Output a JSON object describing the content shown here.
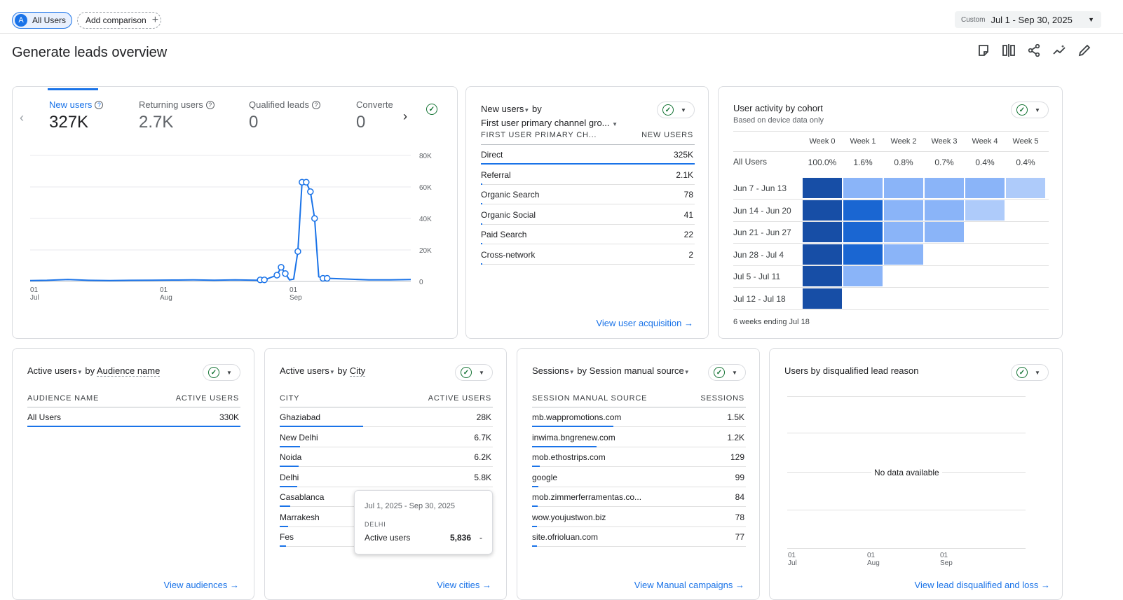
{
  "header": {
    "comparison_chip": {
      "avatar": "A",
      "label": "All Users"
    },
    "add_comparison": {
      "label": "Add comparison",
      "icon": "plus-icon"
    },
    "date_range": {
      "type_label": "Custom",
      "value": "Jul 1 - Sep 30, 2025",
      "icon": "caret-down-icon"
    },
    "page_title": "Generate leads overview",
    "tools": [
      "annotation-icon",
      "compare-columns-icon",
      "share-icon",
      "insights-icon",
      "edit-pencil-icon"
    ]
  },
  "colors": {
    "accent": "#1a73e8",
    "ok": "#137333",
    "heat_dark": "#174ea6",
    "heat_mid": "#1a66d2",
    "heat_light": "#8ab4f8",
    "heat_lighter": "#aecbfa"
  },
  "overview_card": {
    "metrics": [
      {
        "label": "New users",
        "value": "327K",
        "help": "?",
        "active": true
      },
      {
        "label": "Returning users",
        "value": "2.7K",
        "help": "?",
        "active": false
      },
      {
        "label": "Qualified leads",
        "value": "0",
        "help": "?",
        "active": false
      },
      {
        "label": "Converte",
        "value": "0",
        "active": false
      }
    ],
    "prev_icon": "chevron-left-icon",
    "next_icon": "chevron-right-icon",
    "chart_data": {
      "type": "line",
      "series": [
        {
          "x": [
            "07-01",
            "07-05",
            "07-10",
            "07-15",
            "07-20",
            "07-25",
            "07-30",
            "08-04",
            "08-09",
            "08-14",
            "08-19",
            "08-24",
            "08-25",
            "08-26",
            "08-29",
            "08-30",
            "08-31",
            "09-01",
            "09-02",
            "09-03",
            "09-04",
            "09-05",
            "09-06",
            "09-07",
            "09-08",
            "09-09",
            "09-10",
            "09-15",
            "09-20",
            "09-25",
            "09-30"
          ],
          "values": [
            600,
            700,
            1200,
            700,
            600,
            700,
            800,
            900,
            1000,
            800,
            1000,
            800,
            1000,
            1000,
            4000,
            9000,
            5000,
            1000,
            1500,
            19000,
            63000,
            63000,
            57000,
            40000,
            3000,
            2000,
            2000,
            1500,
            1000,
            1000,
            1200
          ]
        }
      ],
      "markers": [
        "08-25",
        "08-26",
        "08-29",
        "08-30",
        "08-31",
        "09-03",
        "09-04",
        "09-05",
        "09-06",
        "09-07",
        "09-09",
        "09-10"
      ],
      "y_ticks": [
        "80K",
        "60K",
        "40K",
        "20K",
        "0"
      ],
      "ylim": [
        0,
        80000
      ],
      "x_ticks": [
        {
          "day": "01",
          "month": "Jul"
        },
        {
          "day": "01",
          "month": "Aug"
        },
        {
          "day": "01",
          "month": "Sep"
        }
      ],
      "grid": true
    }
  },
  "acquisition_card": {
    "title_metric": "New users",
    "title_by": "by",
    "title_dimension": "First user primary channel gro...",
    "col_dimension": "FIRST USER PRIMARY CH...",
    "col_metric": "NEW USERS",
    "rows": [
      {
        "label": "Direct",
        "value": "325K",
        "frac": 1.0
      },
      {
        "label": "Referral",
        "value": "2.1K",
        "frac": 0.007
      },
      {
        "label": "Organic Search",
        "value": "78",
        "frac": 0.003
      },
      {
        "label": "Organic Social",
        "value": "41",
        "frac": 0.002
      },
      {
        "label": "Paid Search",
        "value": "22",
        "frac": 0.001
      },
      {
        "label": "Cross-network",
        "value": "2",
        "frac": 0.0
      }
    ],
    "link": "View user acquisition"
  },
  "cohort_card": {
    "title": "User activity by cohort",
    "subtitle": "Based on device data only",
    "weeks": [
      "Week 0",
      "Week 1",
      "Week 2",
      "Week 3",
      "Week 4",
      "Week 5"
    ],
    "all_users_label": "All Users",
    "all_users": [
      "100.0%",
      "1.6%",
      "0.8%",
      "0.7%",
      "0.4%",
      "0.4%"
    ],
    "rows": [
      {
        "label": "Jun 7 - Jun 13",
        "cells": [
          3,
          1,
          1,
          1,
          1,
          0
        ]
      },
      {
        "label": "Jun 14 - Jun 20",
        "cells": [
          3,
          2,
          1,
          1,
          0
        ]
      },
      {
        "label": "Jun 21 - Jun 27",
        "cells": [
          3,
          2,
          1,
          1
        ]
      },
      {
        "label": "Jun 28 - Jul 4",
        "cells": [
          3,
          2,
          1
        ]
      },
      {
        "label": "Jul 5 - Jul 11",
        "cells": [
          3,
          1
        ]
      },
      {
        "label": "Jul 12 - Jul 18",
        "cells": [
          3
        ]
      }
    ],
    "footer": "6 weeks ending Jul 18"
  },
  "audience_card": {
    "title_metric": "Active users",
    "title_by": "by",
    "title_dimension": "Audience name",
    "col_dimension": "AUDIENCE NAME",
    "col_metric": "ACTIVE USERS",
    "rows": [
      {
        "label": "All Users",
        "value": "330K",
        "frac": 1.0
      }
    ],
    "link": "View audiences"
  },
  "city_card": {
    "title_metric": "Active users",
    "title_by": "by",
    "title_dimension": "City",
    "col_dimension": "CITY",
    "col_metric": "ACTIVE USERS",
    "rows": [
      {
        "label": "Ghaziabad",
        "value": "28K",
        "frac": 0.39
      },
      {
        "label": "New Delhi",
        "value": "6.7K",
        "frac": 0.095
      },
      {
        "label": "Noida",
        "value": "6.2K",
        "frac": 0.088
      },
      {
        "label": "Delhi",
        "value": "5.8K",
        "frac": 0.082
      },
      {
        "label": "Casablanca",
        "value": "",
        "frac": 0.05
      },
      {
        "label": "Marrakesh",
        "value": "",
        "frac": 0.04
      },
      {
        "label": "Fes",
        "value": "",
        "frac": 0.03
      }
    ],
    "tooltip": {
      "date": "Jul 1, 2025 - Sep 30, 2025",
      "dimension": "DELHI",
      "metric": "Active users",
      "value": "5,836",
      "change": "-"
    },
    "link": "View cities"
  },
  "sessions_card": {
    "title_metric": "Sessions",
    "title_dimension": "by Session manual source",
    "col_dimension": "SESSION MANUAL SOURCE",
    "col_metric": "SESSIONS",
    "rows": [
      {
        "label": "mb.wappromotions.com",
        "value": "1.5K",
        "frac": 0.38
      },
      {
        "label": "inwima.bngrenew.com",
        "value": "1.2K",
        "frac": 0.3
      },
      {
        "label": "mob.ethostrips.com",
        "value": "129",
        "frac": 0.035
      },
      {
        "label": "google",
        "value": "99",
        "frac": 0.028
      },
      {
        "label": "mob.zimmerferramentas.co...",
        "value": "84",
        "frac": 0.025
      },
      {
        "label": "wow.youjustwon.biz",
        "value": "78",
        "frac": 0.022
      },
      {
        "label": "site.ofrioluan.com",
        "value": "77",
        "frac": 0.022
      }
    ],
    "link": "View Manual campaigns"
  },
  "disqualified_card": {
    "title": "Users by disqualified lead reason",
    "empty": "No data available",
    "x_ticks": [
      {
        "day": "01",
        "month": "Jul"
      },
      {
        "day": "01",
        "month": "Aug"
      },
      {
        "day": "01",
        "month": "Sep"
      }
    ],
    "link": "View lead disqualified and loss"
  }
}
